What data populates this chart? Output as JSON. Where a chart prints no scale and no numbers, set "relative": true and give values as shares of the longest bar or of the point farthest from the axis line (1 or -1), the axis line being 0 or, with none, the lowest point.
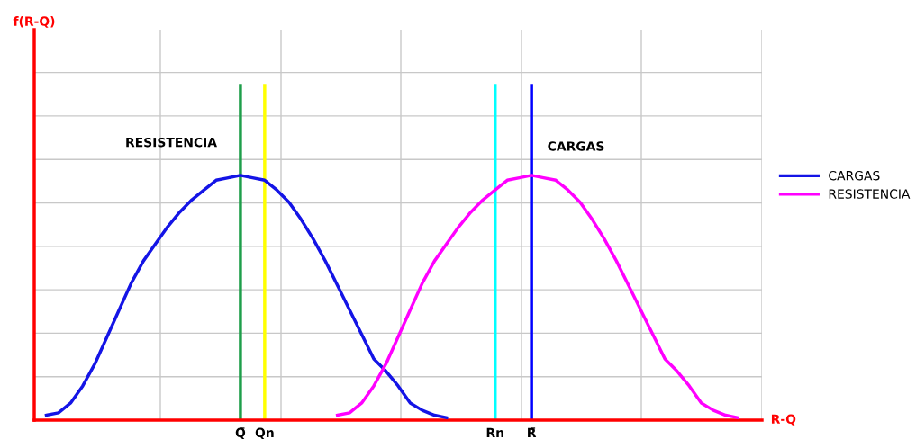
{
  "chart_data": {
    "type": "line",
    "relative": true,
    "xlabel": "R-Q",
    "categories": [
      null,
      null,
      null,
      null,
      null,
      null,
      null,
      null,
      null,
      null,
      null,
      null,
      null,
      null,
      null,
      null,
      null,
      "Q̄",
      null,
      "Qn",
      null,
      null,
      null,
      null,
      null,
      null,
      null,
      null,
      null,
      null,
      null,
      null,
      null,
      null,
      null,
      null,
      null,
      null,
      "Rn",
      null,
      null,
      "R̄",
      null,
      null,
      null,
      null,
      null,
      null,
      null,
      null,
      null,
      null,
      null,
      null,
      null,
      null,
      null,
      null,
      null,
      null,
      null
    ],
    "series": [
      {
        "name": "CARGAS",
        "color": "#1414e6",
        "values": [
          null,
          0.02,
          0.03,
          0.07,
          0.14,
          0.23,
          0.34,
          0.45,
          0.56,
          0.65,
          0.72,
          0.79,
          0.85,
          0.9,
          0.94,
          0.98,
          0.99,
          1,
          0.99,
          0.98,
          0.94,
          0.89,
          0.82,
          0.74,
          0.65,
          0.55,
          0.45,
          0.35,
          0.25,
          0.2,
          0.14,
          0.07,
          0.04,
          0.02,
          0.01,
          null,
          null,
          null,
          null,
          null,
          null,
          null,
          null,
          null,
          null,
          null,
          null,
          null,
          null,
          null,
          null,
          null,
          null,
          null,
          null,
          null,
          null,
          null,
          null,
          null,
          null
        ]
      },
      {
        "name": "RESISTENCIA",
        "color": "#ff00ff",
        "values": [
          null,
          null,
          null,
          null,
          null,
          null,
          null,
          null,
          null,
          null,
          null,
          null,
          null,
          null,
          null,
          null,
          null,
          null,
          null,
          null,
          null,
          null,
          null,
          null,
          null,
          0.02,
          0.03,
          0.07,
          0.14,
          0.23,
          0.34,
          0.45,
          0.56,
          0.65,
          0.72,
          0.79,
          0.85,
          0.9,
          0.94,
          0.98,
          0.99,
          1,
          0.99,
          0.98,
          0.94,
          0.89,
          0.82,
          0.74,
          0.65,
          0.55,
          0.45,
          0.35,
          0.25,
          0.2,
          0.14,
          0.07,
          0.04,
          0.02,
          0.01,
          null,
          null
        ]
      }
    ],
    "ref_lines": [
      {
        "axis": "x",
        "value": "Q̄",
        "color": "#1e9e4a"
      },
      {
        "axis": "x",
        "value": "Qn",
        "color": "#ffff00"
      },
      {
        "axis": "x",
        "value": "Rn",
        "color": "#00ffff"
      },
      {
        "axis": "x",
        "value": "R̄",
        "color": "#0000ff"
      }
    ],
    "annotations": [
      "RESISTENCIA",
      "CARGAS",
      "f(R-Q)"
    ],
    "grid": true,
    "legend": "right",
    "tick_labels": "x",
    "marker": "none",
    "line_style": "solid"
  }
}
